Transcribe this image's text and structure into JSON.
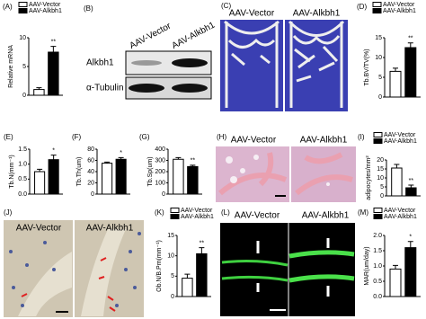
{
  "chart_data": [
    {
      "type": "bar",
      "panel": "(A)",
      "ylabel": "Relative mRNA",
      "ylim": [
        0,
        10
      ],
      "yticks": [
        0,
        5,
        10
      ],
      "annotation": "**",
      "series": [
        {
          "name": "AAV-Vector",
          "color": "#ffffff",
          "values": [
            1
          ],
          "errors": [
            0.3
          ]
        },
        {
          "name": "AAV-Alkbh1",
          "color": "#000000",
          "values": [
            7.5
          ],
          "errors": [
            1.0
          ]
        }
      ]
    },
    {
      "type": "bar",
      "panel": "(D)",
      "ylabel": "Tb.BV/TV(%)",
      "ylim": [
        0,
        15
      ],
      "yticks": [
        0,
        5,
        10,
        15
      ],
      "annotation": "**",
      "series": [
        {
          "name": "AAV-Vector",
          "color": "#ffffff",
          "values": [
            6.5
          ],
          "errors": [
            0.8
          ]
        },
        {
          "name": "AAV-Alkbh1",
          "color": "#000000",
          "values": [
            12.5
          ],
          "errors": [
            1.2
          ]
        }
      ]
    },
    {
      "type": "bar",
      "panel": "(E)",
      "ylabel": "Tb.N(mm⁻¹)",
      "ylim": [
        0,
        1.5
      ],
      "yticks": [
        {
          "value": 0,
          "label": "0.0"
        },
        {
          "value": 0.5,
          "label": "0.5"
        },
        {
          "value": 1,
          "label": "1.0"
        },
        {
          "value": 1.5,
          "label": "1.5"
        }
      ],
      "annotation": "*",
      "series": [
        {
          "color": "#ffffff",
          "values": [
            0.75
          ],
          "errors": [
            0.08
          ]
        },
        {
          "color": "#000000",
          "values": [
            1.15
          ],
          "errors": [
            0.15
          ]
        }
      ]
    },
    {
      "type": "bar",
      "panel": "(F)",
      "ylabel": "Tb.Th(um)",
      "ylim": [
        0,
        80
      ],
      "yticks": [
        0,
        20,
        40,
        60,
        80
      ],
      "annotation": "*",
      "series": [
        {
          "color": "#ffffff",
          "values": [
            55
          ],
          "errors": [
            2
          ]
        },
        {
          "color": "#000000",
          "values": [
            62
          ],
          "errors": [
            3
          ]
        }
      ]
    },
    {
      "type": "bar",
      "panel": "(G)",
      "ylabel": "Tb.Sp(um)",
      "ylim": [
        0,
        400
      ],
      "yticks": [
        0,
        100,
        200,
        300,
        400
      ],
      "annotation": "**",
      "series": [
        {
          "color": "#ffffff",
          "values": [
            310
          ],
          "errors": [
            15
          ]
        },
        {
          "color": "#000000",
          "values": [
            245
          ],
          "errors": [
            12
          ]
        }
      ]
    },
    {
      "type": "bar",
      "panel": "(I)",
      "ylabel": "adipocytes/mm²",
      "ylim": [
        0,
        20
      ],
      "yticks": [
        0,
        5,
        10,
        15,
        20
      ],
      "annotation": "**",
      "series": [
        {
          "name": "AAV-Vector",
          "color": "#ffffff",
          "values": [
            15.5
          ],
          "errors": [
            2
          ]
        },
        {
          "name": "AAV-Alkbh1",
          "color": "#000000",
          "values": [
            4.5
          ],
          "errors": [
            1.5
          ]
        }
      ]
    },
    {
      "type": "bar",
      "panel": "(K)",
      "ylabel": "Ob.N/B.Pm(mm⁻¹)",
      "ylim": [
        0,
        15
      ],
      "yticks": [
        0,
        5,
        10,
        15
      ],
      "annotation": "**",
      "series": [
        {
          "name": "AAV-Vector",
          "color": "#ffffff",
          "values": [
            4.5
          ],
          "errors": [
            1
          ]
        },
        {
          "name": "AAV-Alkbh1",
          "color": "#000000",
          "values": [
            10.5
          ],
          "errors": [
            1.5
          ]
        }
      ]
    },
    {
      "type": "bar",
      "panel": "(M)",
      "ylabel": "MAR(um/day)",
      "ylim": [
        0,
        2
      ],
      "yticks": [
        {
          "value": 0,
          "label": "0.0"
        },
        {
          "value": 0.5,
          "label": "0.5"
        },
        {
          "value": 1,
          "label": "1.0"
        },
        {
          "value": 1.5,
          "label": "1.5"
        },
        {
          "value": 2,
          "label": "2.0"
        }
      ],
      "annotation": "*",
      "series": [
        {
          "name": "AAV-Vector",
          "color": "#ffffff",
          "values": [
            0.9
          ],
          "errors": [
            0.12
          ]
        },
        {
          "name": "AAV-Alkbh1",
          "color": "#000000",
          "values": [
            1.6
          ],
          "errors": [
            0.2
          ]
        }
      ]
    }
  ],
  "blot": {
    "panel": "(B)",
    "columns": [
      "AAV-Vector",
      "AAV-Alkbh1"
    ],
    "rows": [
      "Alkbh1",
      "α-Tubulin"
    ]
  },
  "micro_ct": {
    "panel": "(C)",
    "labels": [
      "AAV-Vector",
      "AAV-Alkbh1"
    ]
  },
  "histology": {
    "panel": "(H)",
    "labels": [
      "AAV-Vector",
      "AAV-Alkbh1"
    ]
  },
  "ihc": {
    "panel": "(J)",
    "labels": [
      "AAV-Vector",
      "AAV-Alkbh1"
    ]
  },
  "fluorescence": {
    "panel": "(L)",
    "labels": [
      "AAV-Vector",
      "AAV-Alkbh1"
    ]
  }
}
